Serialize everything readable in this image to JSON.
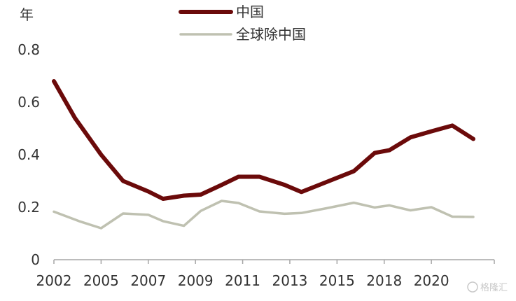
{
  "chart_data": {
    "type": "line",
    "title": "",
    "ylabel": "年",
    "xlabel": "",
    "ylim": [
      0,
      0.8
    ],
    "yticks": [
      "0",
      "0.2",
      "0.4",
      "0.6",
      "0.8"
    ],
    "ytick_values": [
      0,
      0.2,
      0.4,
      0.6,
      0.8
    ],
    "xlim": [
      2002,
      2023
    ],
    "xticks": [
      "2002",
      "2005",
      "2007",
      "2009",
      "2011",
      "2013",
      "2015",
      "2018",
      "2020"
    ],
    "xtick_values": [
      2002,
      2004.25,
      2006.5,
      2008.75,
      2011,
      2013.25,
      2015.5,
      2017.75,
      2020
    ],
    "grid": false,
    "legend_position": "top",
    "series": [
      {
        "name": "中国",
        "color": "#6b0a0a",
        "x": [
          2002,
          2003,
          2004.25,
          2005.3,
          2006.5,
          2007.2,
          2008.2,
          2009,
          2010,
          2010.8,
          2011.8,
          2013,
          2013.8,
          2015,
          2016.3,
          2017.3,
          2018,
          2019,
          2020,
          2021,
          2022
        ],
        "values": [
          0.68,
          0.54,
          0.4,
          0.3,
          0.26,
          0.232,
          0.244,
          0.248,
          0.285,
          0.316,
          0.316,
          0.285,
          0.258,
          0.296,
          0.337,
          0.407,
          0.417,
          0.466,
          0.489,
          0.511,
          0.46
        ]
      },
      {
        "name": "全球除中国",
        "color": "#bfc1b1",
        "x": [
          2002,
          2003.2,
          2004.25,
          2005.3,
          2006.5,
          2007.2,
          2008.2,
          2009,
          2010,
          2010.8,
          2011.8,
          2013,
          2013.8,
          2015,
          2016.3,
          2017.3,
          2018,
          2019,
          2020,
          2021,
          2022
        ],
        "values": [
          0.183,
          0.147,
          0.12,
          0.176,
          0.171,
          0.147,
          0.129,
          0.186,
          0.224,
          0.216,
          0.184,
          0.175,
          0.178,
          0.196,
          0.217,
          0.199,
          0.207,
          0.188,
          0.2,
          0.164,
          0.163
        ]
      }
    ]
  },
  "watermark": {
    "text": "格隆汇"
  }
}
